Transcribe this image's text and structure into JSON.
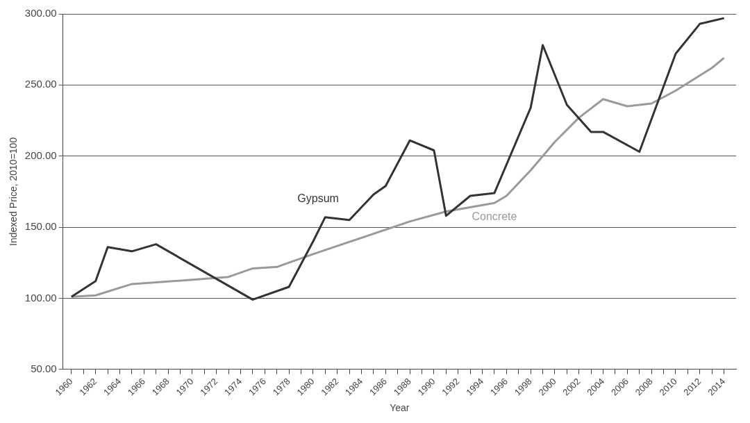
{
  "chart_data": {
    "type": "line",
    "xlabel": "Year",
    "ylabel": "Indexed Price, 2010=100",
    "xlim": [
      1959.3,
      2015
    ],
    "xticks": [
      1960,
      {
        "value": 1961,
        "label": null
      },
      1962,
      {
        "value": 1963,
        "label": null
      },
      1964,
      {
        "value": 1965,
        "label": null
      },
      1966,
      {
        "value": 1967,
        "label": null
      },
      1968,
      {
        "value": 1969,
        "label": null
      },
      1970,
      {
        "value": 1971,
        "label": null
      },
      1972,
      {
        "value": 1973,
        "label": null
      },
      1974,
      {
        "value": 1975,
        "label": null
      },
      1976,
      {
        "value": 1977,
        "label": null
      },
      1978,
      {
        "value": 1979,
        "label": null
      },
      1980,
      {
        "value": 1981,
        "label": null
      },
      1982,
      {
        "value": 1983,
        "label": null
      },
      1984,
      {
        "value": 1985,
        "label": null
      },
      1986,
      {
        "value": 1987,
        "label": null
      },
      1988,
      {
        "value": 1989,
        "label": null
      },
      1990,
      {
        "value": 1991,
        "label": null
      },
      1992,
      {
        "value": 1993,
        "label": null
      },
      1994,
      {
        "value": 1995,
        "label": null
      },
      1996,
      {
        "value": 1997,
        "label": null
      },
      1998,
      {
        "value": 1999,
        "label": null
      },
      2000,
      {
        "value": 2001,
        "label": null
      },
      2002,
      {
        "value": 2003,
        "label": null
      },
      2004,
      {
        "value": 2005,
        "label": null
      },
      2006,
      {
        "value": 2007,
        "label": null
      },
      2008,
      {
        "value": 2009,
        "label": null
      },
      2010,
      {
        "value": 2011,
        "label": null
      },
      2012,
      {
        "value": 2013,
        "label": null
      },
      2014
    ],
    "ylim": [
      50,
      300
    ],
    "yticks": [
      {
        "value": 50,
        "label": "50.00"
      },
      {
        "value": 100,
        "label": "100.00"
      },
      {
        "value": 150,
        "label": "150.00"
      },
      {
        "value": 200,
        "label": "200.00"
      },
      {
        "value": 250,
        "label": "250.00"
      },
      {
        "value": 300,
        "label": "300.00"
      }
    ],
    "grid": "y",
    "legend": false,
    "marker": "none",
    "line_style": "solid",
    "series": [
      {
        "name": "Gypsum",
        "color": "#333333",
        "x": [
          1960,
          1962,
          1963,
          1965,
          1967,
          1975,
          1978,
          1980,
          1981,
          1983,
          1985,
          1986,
          1988,
          1990,
          1991,
          1993,
          1995,
          1998,
          1999,
          2001,
          2003,
          2004,
          2007,
          2010,
          2012,
          2014
        ],
        "values": [
          101,
          112,
          136,
          133,
          138,
          99,
          108,
          140,
          157,
          155,
          173,
          179,
          211,
          204,
          158,
          172,
          174,
          234,
          278,
          236,
          217,
          217,
          203,
          272,
          293,
          297
        ]
      },
      {
        "name": "Concrete",
        "color": "#9a9a9a",
        "x": [
          1960,
          1962,
          1965,
          1970,
          1973,
          1975,
          1977,
          1978,
          1980,
          1988,
          1991,
          1995,
          1996,
          1998,
          2000,
          2002,
          2004,
          2006,
          2008,
          2010,
          2013,
          2014
        ],
        "values": [
          101,
          102,
          110,
          113,
          115,
          121,
          122,
          125,
          131,
          154,
          161,
          167,
          172,
          190,
          210,
          227,
          240,
          235,
          237,
          246,
          262,
          269
        ]
      }
    ]
  }
}
